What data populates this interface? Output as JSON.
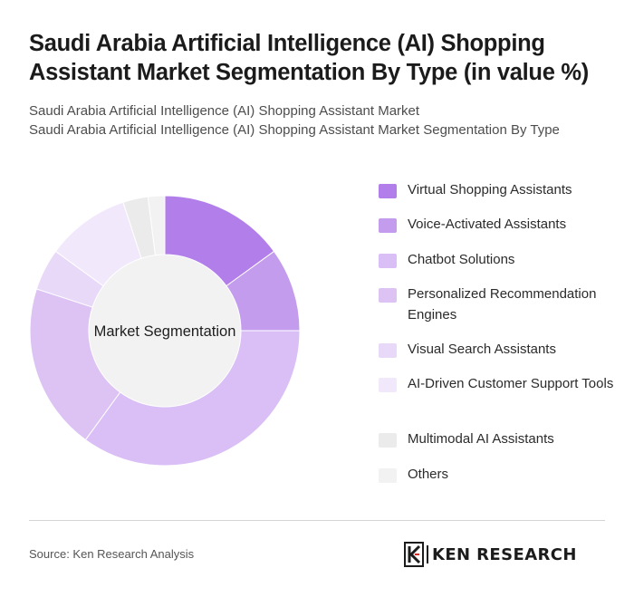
{
  "header": {
    "title": "Saudi Arabia Artificial Intelligence (AI) Shopping Assistant Market Segmentation By Type (in value %)",
    "subtitle_line1": "Saudi Arabia Artificial Intelligence (AI) Shopping Assistant Market",
    "subtitle_line2": "Saudi Arabia Artificial Intelligence (AI) Shopping Assistant Market Segmentation By Type"
  },
  "chart_data": {
    "type": "pie",
    "variant": "donut",
    "center_label": "Market Segmentation",
    "legend_position": "right",
    "categories": [
      "Virtual Shopping Assistants",
      "Voice-Activated Assistants",
      "Chatbot Solutions",
      "Personalized Recommendation Engines",
      "Visual Search Assistants",
      "AI-Driven Customer Support Tools",
      "Multimodal AI Assistants",
      "Others"
    ],
    "values": [
      15,
      10,
      35,
      20,
      5,
      10,
      3,
      2
    ],
    "colors": [
      "#b27ee9",
      "#c49ced",
      "#d9bff5",
      "#dcc3f4",
      "#e9d9f8",
      "#f1e8fb",
      "#ebebeb",
      "#f2f2f2"
    ]
  },
  "footer": {
    "source": "Source: Ken Research Analysis",
    "logo_text": "KEN RESEARCH"
  }
}
